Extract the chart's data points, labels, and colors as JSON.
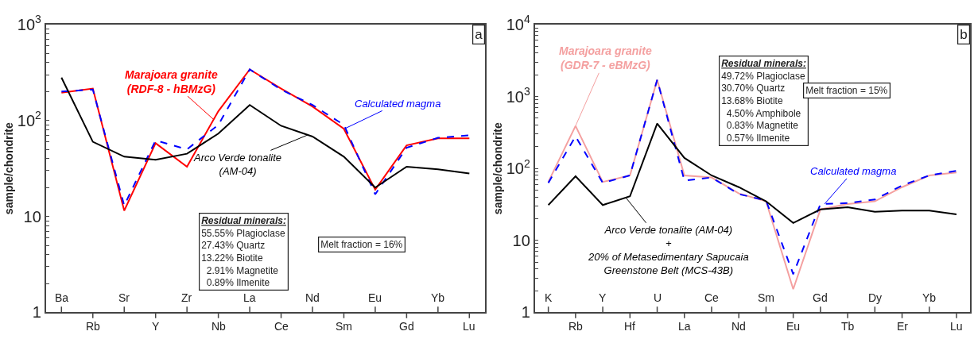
{
  "chart_data": [
    {
      "type": "line",
      "ylabel": "sample/chondrite",
      "log": true,
      "grid": false,
      "categories": [
        "Ba",
        "Rb",
        "Sr",
        "Y",
        "Zr",
        "Nb",
        "La",
        "Ce",
        "Nd",
        "Sm",
        "Eu",
        "Gd",
        "Yb",
        "Lu"
      ],
      "ylim": [
        1,
        1000
      ],
      "yticks": [
        1,
        {
          "value": 2,
          "label": null
        },
        {
          "value": 3,
          "label": null
        },
        {
          "value": 4,
          "label": null
        },
        {
          "value": 5,
          "label": null
        },
        {
          "value": 6,
          "label": null
        },
        {
          "value": 7,
          "label": null
        },
        {
          "value": 8,
          "label": null
        },
        {
          "value": 9,
          "label": null
        },
        10,
        {
          "value": 20,
          "label": null
        },
        {
          "value": 30,
          "label": null
        },
        {
          "value": 40,
          "label": null
        },
        {
          "value": 50,
          "label": null
        },
        {
          "value": 60,
          "label": null
        },
        {
          "value": 70,
          "label": null
        },
        {
          "value": 80,
          "label": null
        },
        {
          "value": 90,
          "label": null
        },
        {
          "value": 100,
          "label": "10$^{2}$"
        },
        {
          "value": 200,
          "label": null
        },
        {
          "value": 300,
          "label": null
        },
        {
          "value": 400,
          "label": null
        },
        {
          "value": 500,
          "label": null
        },
        {
          "value": 600,
          "label": null
        },
        {
          "value": 700,
          "label": null
        },
        {
          "value": 800,
          "label": null
        },
        {
          "value": 900,
          "label": null
        },
        {
          "value": 1000,
          "label": "10$^{3}$"
        }
      ],
      "series": [
        {
          "name": "Marajoara granite\n(RDF-8 - hBMzG)",
          "color": "#ff0000",
          "line_style": "solid",
          "values": [
            195,
            215,
            11.5,
            58,
            33,
            125,
            340,
            215,
            140,
            82,
            19,
            55,
            65,
            65
          ]
        },
        {
          "name": "Calculated magma",
          "color": "#0000ff",
          "line_style": "dashed",
          "values": [
            200,
            210,
            13,
            62,
            50,
            90,
            340,
            210,
            145,
            90,
            17,
            52,
            66,
            70
          ]
        },
        {
          "name": "Arco Verde tonalite\n(AM-04)",
          "color": "#000000",
          "line_style": "solid",
          "values": [
            280,
            60,
            42,
            39,
            45,
            73,
            145,
            88,
            68,
            42,
            20,
            33,
            31,
            28
          ]
        }
      ],
      "annotations": [
        "a",
        "Residual minerals:\n55.55% Plagioclase\n27.43% Quartz\n13.22% Biotite\n  2.91% Magnetite\n  0.89% Ilmenite",
        "Melt fraction = 16%"
      ]
    },
    {
      "type": "line",
      "ylabel": "sample/chondrite",
      "log": true,
      "grid": false,
      "categories": [
        "K",
        "Rb",
        "Y",
        "Hf",
        "U",
        "La",
        "Ce",
        "Nd",
        "Sm",
        "Eu",
        "Gd",
        "Tb",
        "Dy",
        "Er",
        "Yb",
        "Lu"
      ],
      "ylim": [
        1,
        10000
      ],
      "yticks": [
        1,
        {
          "value": 2,
          "label": null
        },
        {
          "value": 3,
          "label": null
        },
        {
          "value": 4,
          "label": null
        },
        {
          "value": 5,
          "label": null
        },
        {
          "value": 6,
          "label": null
        },
        {
          "value": 7,
          "label": null
        },
        {
          "value": 8,
          "label": null
        },
        {
          "value": 9,
          "label": null
        },
        10,
        {
          "value": 20,
          "label": null
        },
        {
          "value": 30,
          "label": null
        },
        {
          "value": 40,
          "label": null
        },
        {
          "value": 50,
          "label": null
        },
        {
          "value": 60,
          "label": null
        },
        {
          "value": 70,
          "label": null
        },
        {
          "value": 80,
          "label": null
        },
        {
          "value": 90,
          "label": null
        },
        {
          "value": 100,
          "label": "10$^{2}$"
        },
        {
          "value": 200,
          "label": null
        },
        {
          "value": 300,
          "label": null
        },
        {
          "value": 400,
          "label": null
        },
        {
          "value": 500,
          "label": null
        },
        {
          "value": 600,
          "label": null
        },
        {
          "value": 700,
          "label": null
        },
        {
          "value": 800,
          "label": null
        },
        {
          "value": 900,
          "label": null
        },
        {
          "value": 1000,
          "label": "10$^{3}$"
        },
        {
          "value": 2000,
          "label": null
        },
        {
          "value": 3000,
          "label": null
        },
        {
          "value": 4000,
          "label": null
        },
        {
          "value": 5000,
          "label": null
        },
        {
          "value": 6000,
          "label": null
        },
        {
          "value": 7000,
          "label": null
        },
        {
          "value": 8000,
          "label": null
        },
        {
          "value": 9000,
          "label": null
        },
        {
          "value": 10000,
          "label": "10$^{4}$"
        }
      ],
      "series": [
        {
          "name": "Marajoara granite\n(GDR-7 - eBMzG)",
          "color": "#f4a0a0",
          "line_style": "solid",
          "values": [
            65,
            390,
            65,
            80,
            1700,
            80,
            75,
            45,
            35,
            2.1,
            27,
            32,
            35,
            55,
            80,
            88
          ]
        },
        {
          "name": "Calculated magma",
          "color": "#0000ff",
          "line_style": "dashed",
          "values": [
            63,
            280,
            63,
            80,
            1700,
            68,
            75,
            44,
            36,
            3.4,
            32,
            33,
            37,
            58,
            80,
            93
          ]
        },
        {
          "name": "Arco Verde tonalite (AM-04)\n+\n20% of Metasedimentary Sapucaia\nGreenstone Belt (MCS-43B)",
          "color": "#000000",
          "line_style": "solid",
          "values": [
            31,
            78,
            31,
            41,
            420,
            140,
            80,
            55,
            35,
            17.5,
            27,
            29,
            25,
            26,
            26,
            23
          ]
        }
      ],
      "annotations": [
        "b",
        "Residual minerals:\n49.72% Plagioclase\n30.70% Quartz\n13.68% Biotite\n  4.50% Amphibole\n  0.83% Magnetite\n  0.57% Ilmenite",
        "Melt fraction = 15%"
      ]
    }
  ]
}
